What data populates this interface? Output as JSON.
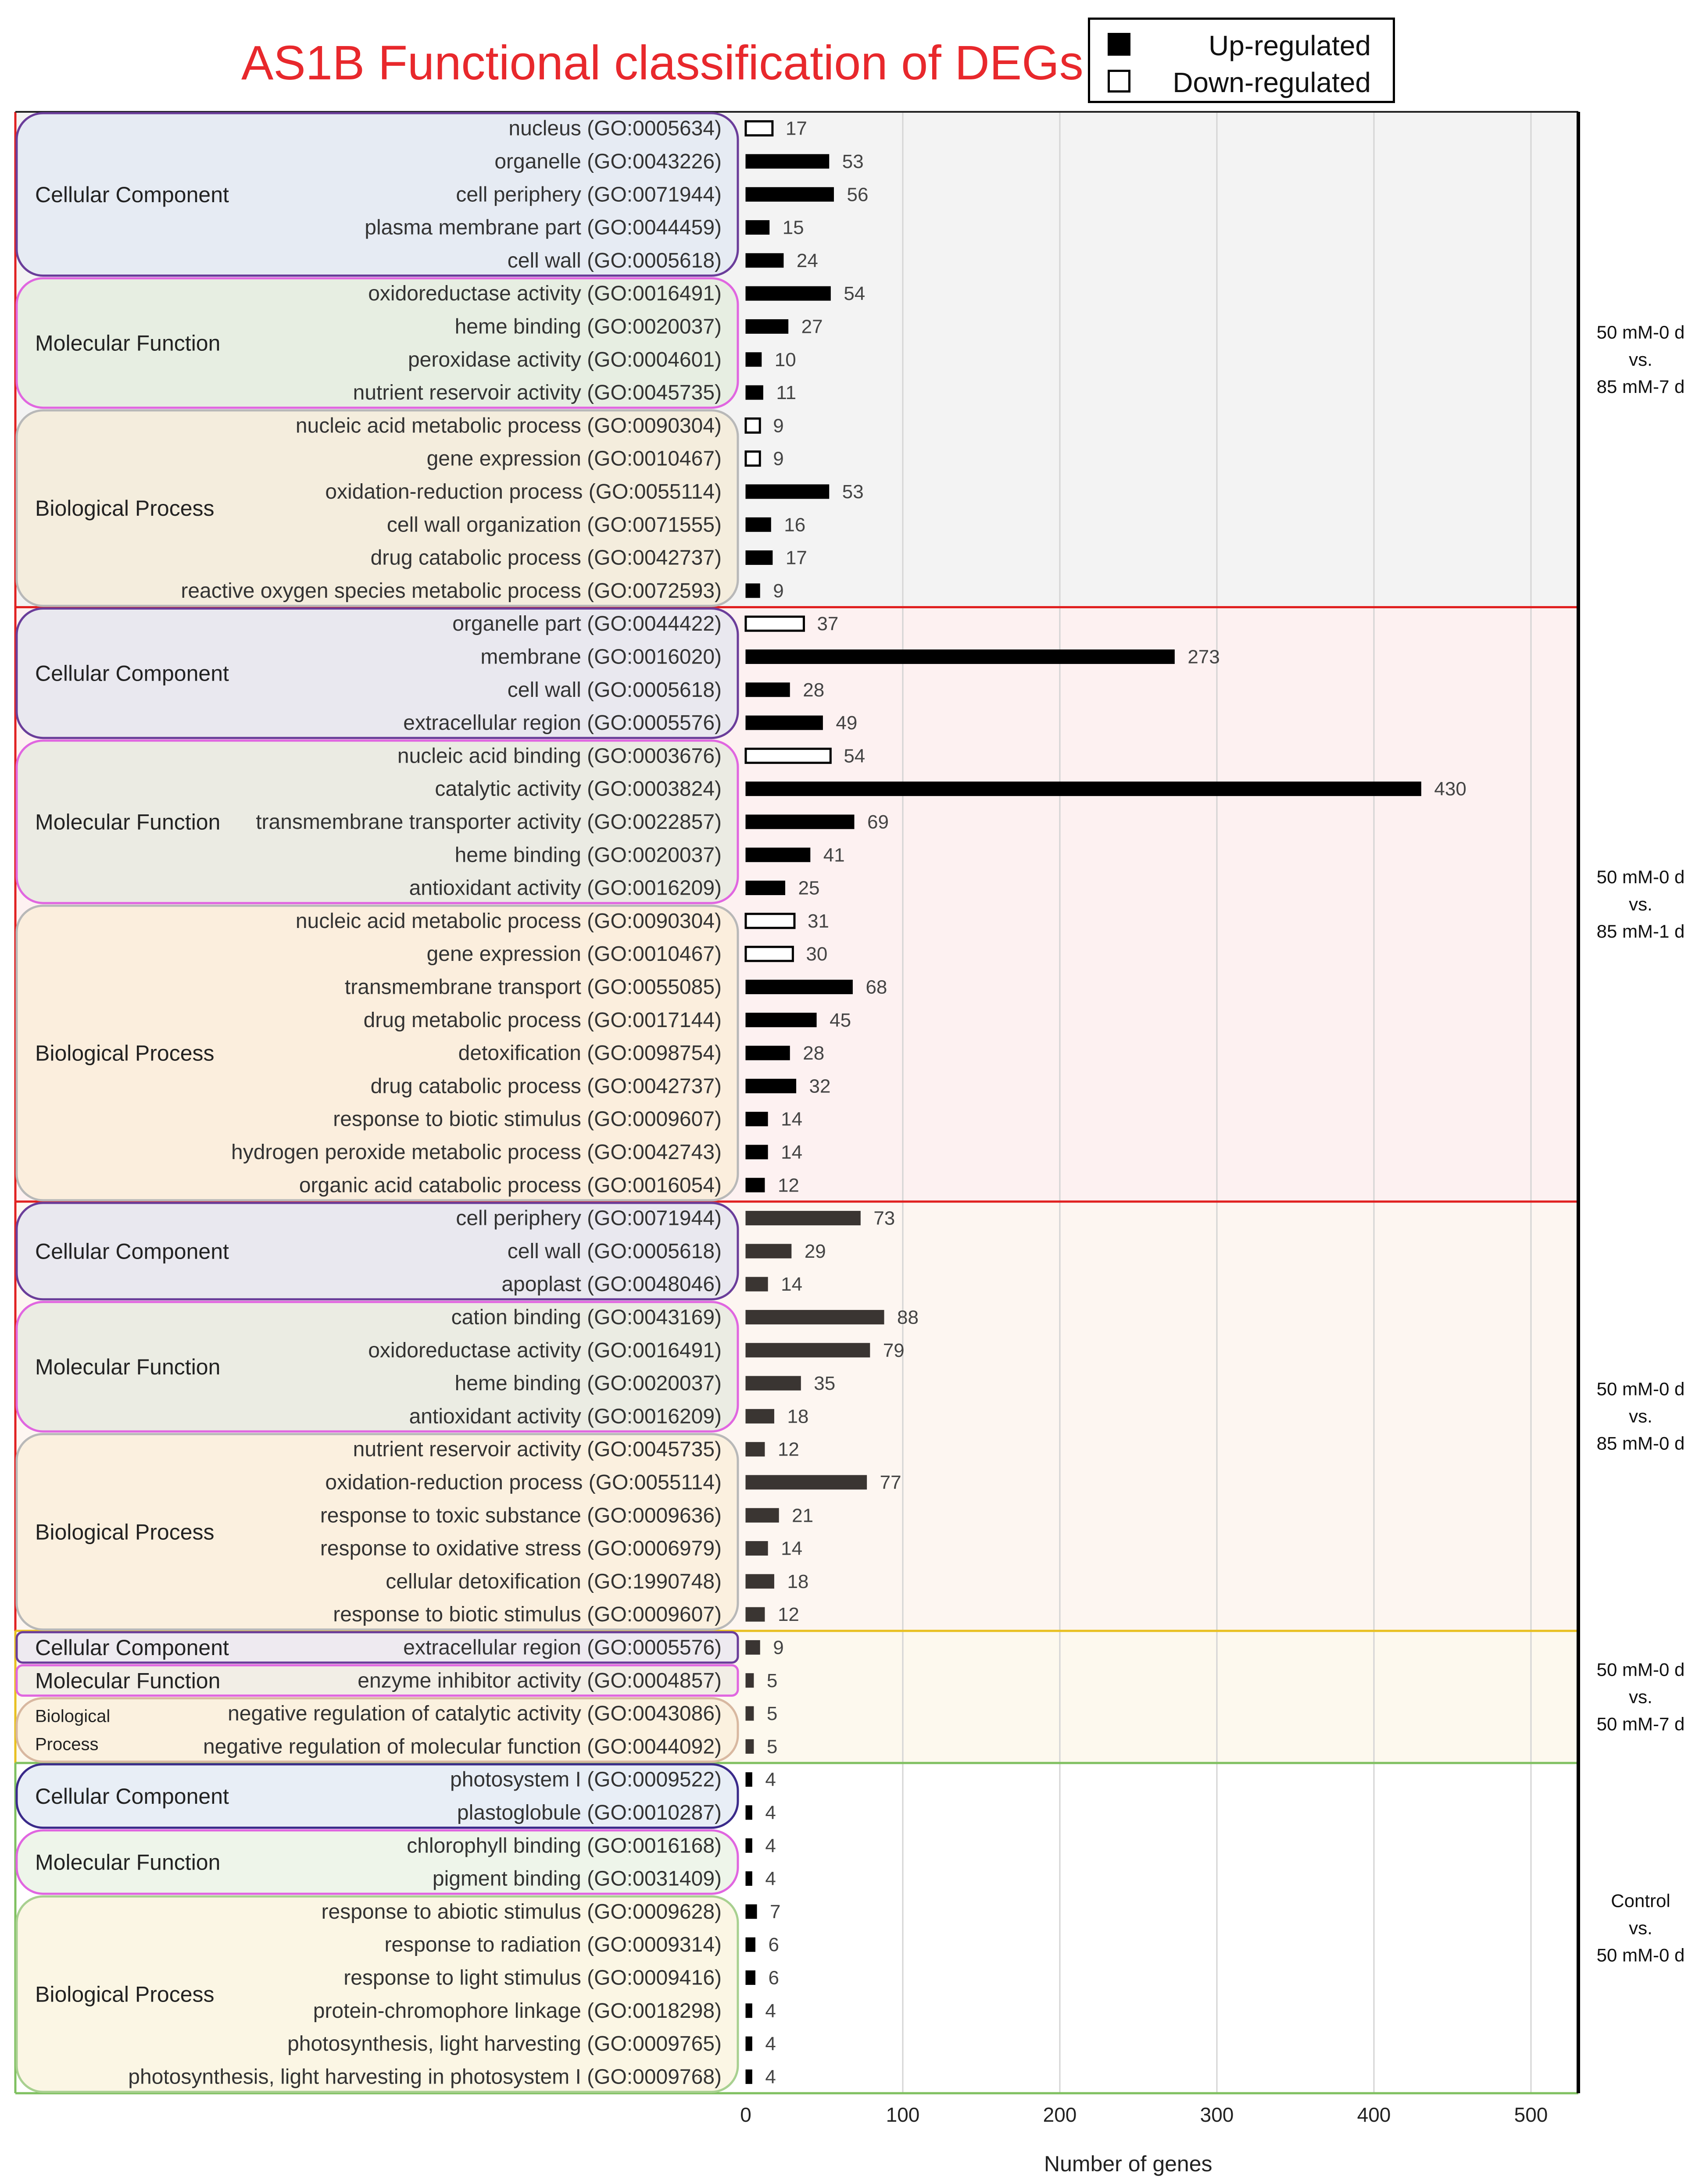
{
  "chart_data": {
    "type": "bar",
    "orientation": "horizontal",
    "title": "AS1B Functional classification of DEGs",
    "xlabel": "Number of genes",
    "xlim": [
      0,
      530
    ],
    "xticks": [
      0,
      100,
      200,
      300,
      400,
      500
    ],
    "grid": true,
    "legend": [
      {
        "name": "Up-regulated",
        "fill": "#000000"
      },
      {
        "name": "Down-regulated",
        "fill": "#ffffff"
      }
    ],
    "comparisons": [
      {
        "label": [
          "50 mM-0 d",
          "vs.",
          "85 mM-7 d"
        ],
        "background": "#f3f3f3",
        "border": "#e02020",
        "bar_color": "#000000",
        "groups": [
          {
            "name": [
              "Cellular Component"
            ],
            "fill": "#e6ebf3",
            "stroke": "#6a3d9a",
            "items": [
              {
                "label": "nucleus (GO:0005634)",
                "value": 17,
                "direction": "down"
              },
              {
                "label": "organelle (GO:0043226)",
                "value": 53,
                "direction": "up"
              },
              {
                "label": "cell periphery (GO:0071944)",
                "value": 56,
                "direction": "up"
              },
              {
                "label": "plasma membrane part (GO:0044459)",
                "value": 15,
                "direction": "up"
              },
              {
                "label": "cell wall (GO:0005618)",
                "value": 24,
                "direction": "up"
              }
            ]
          },
          {
            "name": [
              "Molecular Function"
            ],
            "fill": "#e7eee2",
            "stroke": "#e066e0",
            "items": [
              {
                "label": "oxidoreductase activity (GO:0016491)",
                "value": 54,
                "direction": "up"
              },
              {
                "label": "heme binding (GO:0020037)",
                "value": 27,
                "direction": "up"
              },
              {
                "label": "peroxidase activity (GO:0004601)",
                "value": 10,
                "direction": "up"
              },
              {
                "label": "nutrient reservoir activity (GO:0045735)",
                "value": 11,
                "direction": "up"
              }
            ]
          },
          {
            "name": [
              "Biological Process"
            ],
            "fill": "#f4eddd",
            "stroke": "#b8b8b8",
            "items": [
              {
                "label": "nucleic acid metabolic process (GO:0090304)",
                "value": 9,
                "direction": "down"
              },
              {
                "label": "gene expression (GO:0010467)",
                "value": 9,
                "direction": "down"
              },
              {
                "label": "oxidation-reduction process (GO:0055114)",
                "value": 53,
                "direction": "up"
              },
              {
                "label": "cell wall organization (GO:0071555)",
                "value": 16,
                "direction": "up"
              },
              {
                "label": "drug catabolic process (GO:0042737)",
                "value": 17,
                "direction": "up"
              },
              {
                "label": "reactive oxygen species metabolic process (GO:0072593)",
                "value": 9,
                "direction": "up"
              }
            ]
          }
        ]
      },
      {
        "label": [
          "50 mM-0 d",
          "vs.",
          "85 mM-1 d"
        ],
        "background": "#fdf1f1",
        "border": "#e02020",
        "bar_color": "#000000",
        "groups": [
          {
            "name": [
              "Cellular Component"
            ],
            "fill": "#e9e8ef",
            "stroke": "#6a3d9a",
            "items": [
              {
                "label": "organelle part (GO:0044422)",
                "value": 37,
                "direction": "down"
              },
              {
                "label": "membrane (GO:0016020)",
                "value": 273,
                "direction": "up"
              },
              {
                "label": "cell wall (GO:0005618)",
                "value": 28,
                "direction": "up"
              },
              {
                "label": "extracellular region (GO:0005576)",
                "value": 49,
                "direction": "up"
              }
            ]
          },
          {
            "name": [
              "Molecular Function"
            ],
            "fill": "#ebebe3",
            "stroke": "#e066e0",
            "items": [
              {
                "label": "nucleic acid binding (GO:0003676)",
                "value": 54,
                "direction": "down"
              },
              {
                "label": "catalytic activity (GO:0003824)",
                "value": 430,
                "direction": "up"
              },
              {
                "label": "transmembrane transporter activity (GO:0022857)",
                "value": 69,
                "direction": "up"
              },
              {
                "label": "heme binding (GO:0020037)",
                "value": 41,
                "direction": "up"
              },
              {
                "label": "antioxidant activity (GO:0016209)",
                "value": 25,
                "direction": "up"
              }
            ]
          },
          {
            "name": [
              "Biological Process"
            ],
            "fill": "#fbeedd",
            "stroke": "#b8b8b8",
            "items": [
              {
                "label": "nucleic acid metabolic process (GO:0090304)",
                "value": 31,
                "direction": "down"
              },
              {
                "label": "gene expression (GO:0010467)",
                "value": 30,
                "direction": "down"
              },
              {
                "label": "transmembrane transport (GO:0055085)",
                "value": 68,
                "direction": "up"
              },
              {
                "label": "drug metabolic process (GO:0017144)",
                "value": 45,
                "direction": "up"
              },
              {
                "label": "detoxification (GO:0098754)",
                "value": 28,
                "direction": "up"
              },
              {
                "label": "drug catabolic process (GO:0042737)",
                "value": 32,
                "direction": "up"
              },
              {
                "label": "response to biotic stimulus (GO:0009607)",
                "value": 14,
                "direction": "up"
              },
              {
                "label": "hydrogen peroxide metabolic process (GO:0042743)",
                "value": 14,
                "direction": "up"
              },
              {
                "label": "organic acid catabolic process (GO:0016054)",
                "value": 12,
                "direction": "up"
              }
            ]
          }
        ]
      },
      {
        "label": [
          "50 mM-0 d",
          "vs.",
          "85 mM-0 d"
        ],
        "background": "#fdf6f1",
        "border": "#e02020",
        "bar_color": "#3a3532",
        "groups": [
          {
            "name": [
              "Cellular Component"
            ],
            "fill": "#e9e8ef",
            "stroke": "#6a3d9a",
            "items": [
              {
                "label": "cell periphery (GO:0071944)",
                "value": 73,
                "direction": "up"
              },
              {
                "label": "cell wall (GO:0005618)",
                "value": 29,
                "direction": "up"
              },
              {
                "label": "apoplast (GO:0048046)",
                "value": 14,
                "direction": "up"
              }
            ]
          },
          {
            "name": [
              "Molecular Function"
            ],
            "fill": "#ebece3",
            "stroke": "#e066e0",
            "items": [
              {
                "label": "cation binding (GO:0043169)",
                "value": 88,
                "direction": "up"
              },
              {
                "label": "oxidoreductase activity (GO:0016491)",
                "value": 79,
                "direction": "up"
              },
              {
                "label": "heme binding (GO:0020037)",
                "value": 35,
                "direction": "up"
              },
              {
                "label": "antioxidant activity (GO:0016209)",
                "value": 18,
                "direction": "up"
              }
            ]
          },
          {
            "name": [
              "Biological Process"
            ],
            "fill": "#fbf0df",
            "stroke": "#b8b8b8",
            "items": [
              {
                "label": "nutrient reservoir activity (GO:0045735)",
                "value": 12,
                "direction": "up"
              },
              {
                "label": "oxidation-reduction process (GO:0055114)",
                "value": 77,
                "direction": "up"
              },
              {
                "label": "response to toxic substance (GO:0009636)",
                "value": 21,
                "direction": "up"
              },
              {
                "label": "response to oxidative stress (GO:0006979)",
                "value": 14,
                "direction": "up"
              },
              {
                "label": "cellular detoxification (GO:1990748)",
                "value": 18,
                "direction": "up"
              },
              {
                "label": "response to biotic stimulus (GO:0009607)",
                "value": 12,
                "direction": "up"
              }
            ]
          }
        ]
      },
      {
        "label": [
          "50 mM-0 d",
          "vs.",
          "50 mM-7 d"
        ],
        "background": "#fdf9ee",
        "border": "#e8c020",
        "bar_color": "#3a3532",
        "groups": [
          {
            "name": [
              "Cellular Component"
            ],
            "fill": "#eeeaf0",
            "stroke": "#6a3d9a",
            "items": [
              {
                "label": "extracellular region (GO:0005576)",
                "value": 9,
                "direction": "up"
              }
            ]
          },
          {
            "name": [
              "Molecular Function"
            ],
            "fill": "#f2eee6",
            "stroke": "#e066e0",
            "items": [
              {
                "label": "enzyme inhibitor activity (GO:0004857)",
                "value": 5,
                "direction": "up"
              }
            ]
          },
          {
            "name": [
              "Biological",
              "Process"
            ],
            "fill": "#fbf1df",
            "stroke": "#d8b8a0",
            "items": [
              {
                "label": "negative regulation of catalytic activity (GO:0043086)",
                "value": 5,
                "direction": "up"
              },
              {
                "label": "negative regulation of molecular function (GO:0044092)",
                "value": 5,
                "direction": "up"
              }
            ]
          }
        ]
      },
      {
        "label": [
          "Control",
          "vs.",
          "50 mM-0 d"
        ],
        "background": "#ffffff",
        "border": "#7fc060",
        "bar_color": "#000000",
        "groups": [
          {
            "name": [
              "Cellular Component"
            ],
            "fill": "#e8eef6",
            "stroke": "#3a2a8a",
            "items": [
              {
                "label": "photosystem I (GO:0009522)",
                "value": 4,
                "direction": "up"
              },
              {
                "label": "plastoglobule (GO:0010287)",
                "value": 4,
                "direction": "up"
              }
            ]
          },
          {
            "name": [
              "Molecular Function"
            ],
            "fill": "#eef5ea",
            "stroke": "#e066e0",
            "items": [
              {
                "label": "chlorophyll binding (GO:0016168)",
                "value": 4,
                "direction": "up"
              },
              {
                "label": "pigment binding (GO:0031409)",
                "value": 4,
                "direction": "up"
              }
            ]
          },
          {
            "name": [
              "Biological Process"
            ],
            "fill": "#fbf6e4",
            "stroke": "#a8d090",
            "items": [
              {
                "label": "response to abiotic stimulus (GO:0009628)",
                "value": 7,
                "direction": "up"
              },
              {
                "label": "response to radiation (GO:0009314)",
                "value": 6,
                "direction": "up"
              },
              {
                "label": "response to light stimulus (GO:0009416)",
                "value": 6,
                "direction": "up"
              },
              {
                "label": "protein-chromophore linkage (GO:0018298)",
                "value": 4,
                "direction": "up"
              },
              {
                "label": "photosynthesis, light harvesting (GO:0009765)",
                "value": 4,
                "direction": "up"
              },
              {
                "label": "photosynthesis, light harvesting in photosystem I (GO:0009768)",
                "value": 4,
                "direction": "up"
              }
            ]
          }
        ]
      }
    ]
  }
}
